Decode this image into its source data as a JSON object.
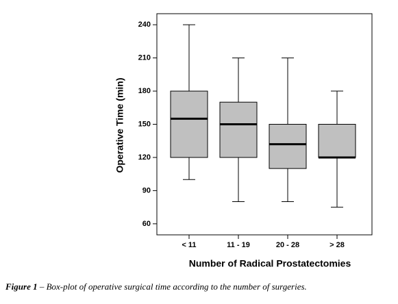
{
  "chart_data": {
    "type": "box",
    "y_label": "Operative Time (min)",
    "x_label": "Number of Radical Prostatectomies",
    "categories": [
      "< 11",
      "11 - 19",
      "20 - 28",
      "> 28"
    ],
    "boxes": [
      {
        "whislo": 100,
        "q1": 120,
        "med": 155,
        "q3": 180,
        "whishi": 240
      },
      {
        "whislo": 80,
        "q1": 120,
        "med": 150,
        "q3": 170,
        "whishi": 210
      },
      {
        "whislo": 80,
        "q1": 110,
        "med": 132,
        "q3": 150,
        "whishi": 210
      },
      {
        "whislo": 75,
        "q1": 120,
        "med": 120,
        "q3": 150,
        "whishi": 180
      }
    ],
    "color": "#c0c0c0",
    "ylim": [
      50,
      250
    ],
    "yticks": [
      60,
      90,
      120,
      150,
      180,
      210,
      240
    ],
    "caption_label": "Figure 1",
    "caption_text": "– Box-plot of operative surgical time according to the number of surgeries."
  }
}
